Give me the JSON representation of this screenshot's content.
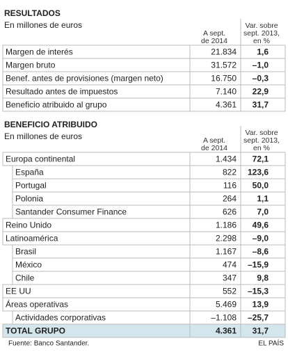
{
  "sections": [
    {
      "title": "RESULTADOS",
      "subtitle": "En millones de euros",
      "col_a": [
        "A sept.",
        "de 2014"
      ],
      "col_b": [
        "Var. sobre",
        "sept. 2013,",
        "en %"
      ],
      "rows": [
        {
          "label": "Margen de interés",
          "value": "21.834",
          "var": "1,6"
        },
        {
          "label": "Margen bruto",
          "value": "31.572",
          "var": "–1,0"
        },
        {
          "label": "Benef. antes de provisiones (margen neto)",
          "value": "16.750",
          "var": "–0,3"
        },
        {
          "label": "Resultado antes de impuestos",
          "value": "7.140",
          "var": "22,9"
        },
        {
          "label": "Beneficio atribuido al grupo",
          "value": "4.361",
          "var": "31,7"
        }
      ]
    },
    {
      "title": "BENEFICIO ATRIBUIDO",
      "subtitle": "En millones de euros",
      "col_a": [
        "A sept.",
        "de 2014"
      ],
      "col_b": [
        "Var. sobre",
        "sept. 2013,",
        "en %"
      ],
      "rows": [
        {
          "label": "Europa continental",
          "value": "1.434",
          "var": "72,1"
        },
        {
          "label": "España",
          "value": "822",
          "var": "123,6",
          "indent": true
        },
        {
          "label": "Portugal",
          "value": "116",
          "var": "50,0",
          "indent": true
        },
        {
          "label": "Polonia",
          "value": "264",
          "var": "1,1",
          "indent": true
        },
        {
          "label": "Santander Consumer Finance",
          "value": "626",
          "var": "7,0",
          "indent": true
        },
        {
          "label": "Reino Unido",
          "value": "1.186",
          "var": "49,6"
        },
        {
          "label": "Latinoamérica",
          "value": "2.298",
          "var": "–9,0"
        },
        {
          "label": "Brasil",
          "value": "1.167",
          "var": "–8,6",
          "indent": true
        },
        {
          "label": "México",
          "value": "474",
          "var": "–15,9",
          "indent": true
        },
        {
          "label": "Chile",
          "value": "347",
          "var": "9,8",
          "indent": true
        },
        {
          "label": "EE UU",
          "value": "552",
          "var": "–15,3"
        },
        {
          "label": "Áreas operativas",
          "value": "5.469",
          "var": "13,9"
        },
        {
          "label": "Actividades corporativas",
          "value": "–1.108",
          "var": "–25,7",
          "indent": true
        },
        {
          "label": "TOTAL GRUPO",
          "value": "4.361",
          "var": "31,7",
          "total": true
        }
      ]
    }
  ],
  "footer": {
    "source": "Fuente: Banco Santander.",
    "brand": "EL PAÍS"
  }
}
